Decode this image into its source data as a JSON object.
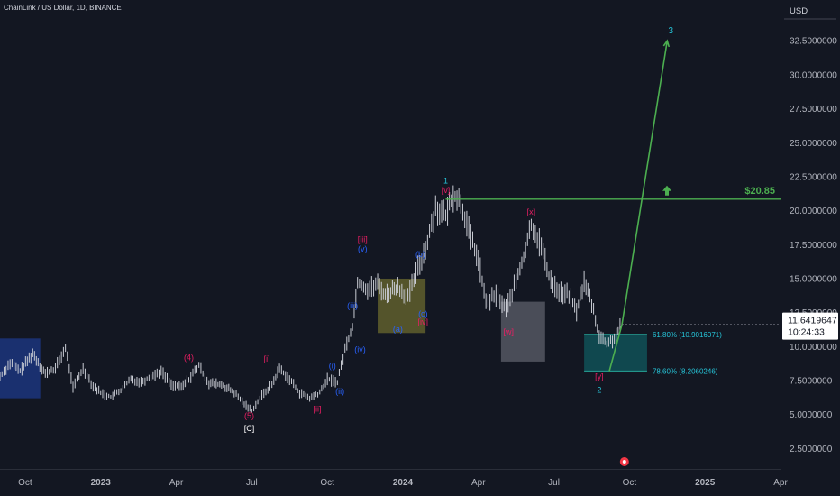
{
  "header": {
    "symbol_line": "ChainLink / US Dollar, 1D, BINANCE"
  },
  "currency": "USD",
  "chart_data": {
    "type": "candlestick",
    "y_ticks": [
      "2.5000000",
      "5.0000000",
      "7.5000000",
      "10.0000000",
      "12.5000000",
      "15.0000000",
      "17.5000000",
      "20.0000000",
      "22.5000000",
      "25.0000000",
      "27.5000000",
      "30.0000000",
      "32.5000000"
    ],
    "y_tick_values": [
      2.5,
      5,
      7.5,
      10,
      12.5,
      15,
      17.5,
      20,
      22.5,
      25,
      27.5,
      30,
      32.5
    ],
    "ylim": [
      1.0,
      35.5
    ],
    "x_ticks": [
      "Oct",
      "2023",
      "Apr",
      "Jul",
      "Oct",
      "2024",
      "Apr",
      "Jul",
      "Oct",
      "2025",
      "Apr"
    ],
    "x_tick_values": [
      0,
      3,
      6,
      9,
      12,
      15,
      18,
      21,
      24,
      27,
      30
    ],
    "xlim": [
      -1.0,
      30.0
    ],
    "bold_x_ticks": [
      "2023",
      "2024",
      "2025"
    ],
    "price_path": [
      [
        -1.0,
        7.8
      ],
      [
        -0.6,
        8.8
      ],
      [
        -0.2,
        8.2
      ],
      [
        0.3,
        9.5
      ],
      [
        0.8,
        8.0
      ],
      [
        1.2,
        8.4
      ],
      [
        1.6,
        9.9
      ],
      [
        1.9,
        7.0
      ],
      [
        2.3,
        8.4
      ],
      [
        2.7,
        7.1
      ],
      [
        3.0,
        6.6
      ],
      [
        3.4,
        6.3
      ],
      [
        3.8,
        6.8
      ],
      [
        4.2,
        7.6
      ],
      [
        4.6,
        7.4
      ],
      [
        5.0,
        7.8
      ],
      [
        5.4,
        8.2
      ],
      [
        5.8,
        7.2
      ],
      [
        6.2,
        7.0
      ],
      [
        6.5,
        7.6
      ],
      [
        6.9,
        8.6
      ],
      [
        7.3,
        7.3
      ],
      [
        7.8,
        7.2
      ],
      [
        8.3,
        6.6
      ],
      [
        8.7,
        5.8
      ],
      [
        9.0,
        5.3
      ],
      [
        9.4,
        6.4
      ],
      [
        9.8,
        7.2
      ],
      [
        10.1,
        8.4
      ],
      [
        10.5,
        7.6
      ],
      [
        10.9,
        6.6
      ],
      [
        11.3,
        6.2
      ],
      [
        11.7,
        6.6
      ],
      [
        12.0,
        7.6
      ],
      [
        12.4,
        7.4
      ],
      [
        12.7,
        9.8
      ],
      [
        13.0,
        11.5
      ],
      [
        13.2,
        14.8
      ],
      [
        13.6,
        14.2
      ],
      [
        14.0,
        14.6
      ],
      [
        14.3,
        13.8
      ],
      [
        14.8,
        14.4
      ],
      [
        15.2,
        13.6
      ],
      [
        15.6,
        15.8
      ],
      [
        15.9,
        17.2
      ],
      [
        16.3,
        20.2
      ],
      [
        16.7,
        19.6
      ],
      [
        17.0,
        21.2
      ],
      [
        17.3,
        20.6
      ],
      [
        17.7,
        18.0
      ],
      [
        18.0,
        16.4
      ],
      [
        18.3,
        13.2
      ],
      [
        18.7,
        13.8
      ],
      [
        19.1,
        12.8
      ],
      [
        19.5,
        14.8
      ],
      [
        19.8,
        16.6
      ],
      [
        20.1,
        19.0
      ],
      [
        20.5,
        17.4
      ],
      [
        20.8,
        15.2
      ],
      [
        21.2,
        14.0
      ],
      [
        21.6,
        13.8
      ],
      [
        21.9,
        12.6
      ],
      [
        22.2,
        14.8
      ],
      [
        22.5,
        13.2
      ],
      [
        22.8,
        10.8
      ],
      [
        23.1,
        10.2
      ],
      [
        23.4,
        10.6
      ],
      [
        23.7,
        11.64
      ]
    ],
    "current_price": "11.6419647",
    "countdown": "10:24:33",
    "horizontal_level": {
      "value": 20.85,
      "label": "$20.85",
      "x_start": 16.7
    },
    "fib_levels": [
      {
        "label": "61.80% (10.9016071)",
        "value": 10.9016071
      },
      {
        "label": "78.60% (8.2060246)",
        "value": 8.2060246
      }
    ],
    "projection_path": [
      [
        23.2,
        8.2
      ],
      [
        23.7,
        11.6
      ],
      [
        25.5,
        32.5
      ]
    ],
    "projection_label": "3",
    "zones": [
      {
        "x0": -1.0,
        "x1": 0.6,
        "y0": 6.2,
        "y1": 10.6,
        "color": "#1e3a8a"
      },
      {
        "x0": 14.0,
        "x1": 15.9,
        "y0": 11.0,
        "y1": 15.0,
        "color": "#6b6a2f"
      },
      {
        "x0": 18.9,
        "x1": 20.65,
        "y0": 8.9,
        "y1": 13.3,
        "color": "#5d606b"
      },
      {
        "x0": 22.2,
        "x1": 24.7,
        "y0": 8.2,
        "y1": 10.9,
        "color": "#10595f"
      }
    ],
    "wave_labels": [
      {
        "text": "(4)",
        "x": 6.5,
        "y": 9.0,
        "color": "#e91e63"
      },
      {
        "text": "(5)",
        "x": 8.9,
        "y": 4.7,
        "color": "#e91e63"
      },
      {
        "text": "[C]",
        "x": 8.9,
        "y": 3.8,
        "color": "#ffffff"
      },
      {
        "text": "[i]",
        "x": 9.6,
        "y": 8.9,
        "color": "#e91e63"
      },
      {
        "text": "[ii]",
        "x": 11.6,
        "y": 5.2,
        "color": "#e91e63"
      },
      {
        "text": "(i)",
        "x": 12.2,
        "y": 8.4,
        "color": "#2962ff"
      },
      {
        "text": "(ii)",
        "x": 12.5,
        "y": 6.5,
        "color": "#2962ff"
      },
      {
        "text": "(iii)",
        "x": 13.0,
        "y": 12.8,
        "color": "#2962ff"
      },
      {
        "text": "(iv)",
        "x": 13.3,
        "y": 9.6,
        "color": "#2962ff"
      },
      {
        "text": "(v)",
        "x": 13.4,
        "y": 17.0,
        "color": "#2962ff"
      },
      {
        "text": "[iii]",
        "x": 13.4,
        "y": 17.7,
        "color": "#e91e63"
      },
      {
        "text": "(a)",
        "x": 14.8,
        "y": 11.1,
        "color": "#2962ff"
      },
      {
        "text": "(b)",
        "x": 15.7,
        "y": 16.6,
        "color": "#2962ff"
      },
      {
        "text": "(c)",
        "x": 15.8,
        "y": 12.2,
        "color": "#2962ff"
      },
      {
        "text": "[iv]",
        "x": 15.8,
        "y": 11.6,
        "color": "#e91e63"
      },
      {
        "text": "[v]",
        "x": 16.7,
        "y": 21.3,
        "color": "#e91e63"
      },
      {
        "text": "1",
        "x": 16.7,
        "y": 22.0,
        "color": "#26c6da"
      },
      {
        "text": "[w]",
        "x": 19.2,
        "y": 10.9,
        "color": "#e91e63"
      },
      {
        "text": "[x]",
        "x": 20.1,
        "y": 19.7,
        "color": "#e91e63"
      },
      {
        "text": "[y]",
        "x": 22.8,
        "y": 7.6,
        "color": "#e91e63"
      },
      {
        "text": "2",
        "x": 22.8,
        "y": 6.6,
        "color": "#26c6da"
      }
    ]
  }
}
